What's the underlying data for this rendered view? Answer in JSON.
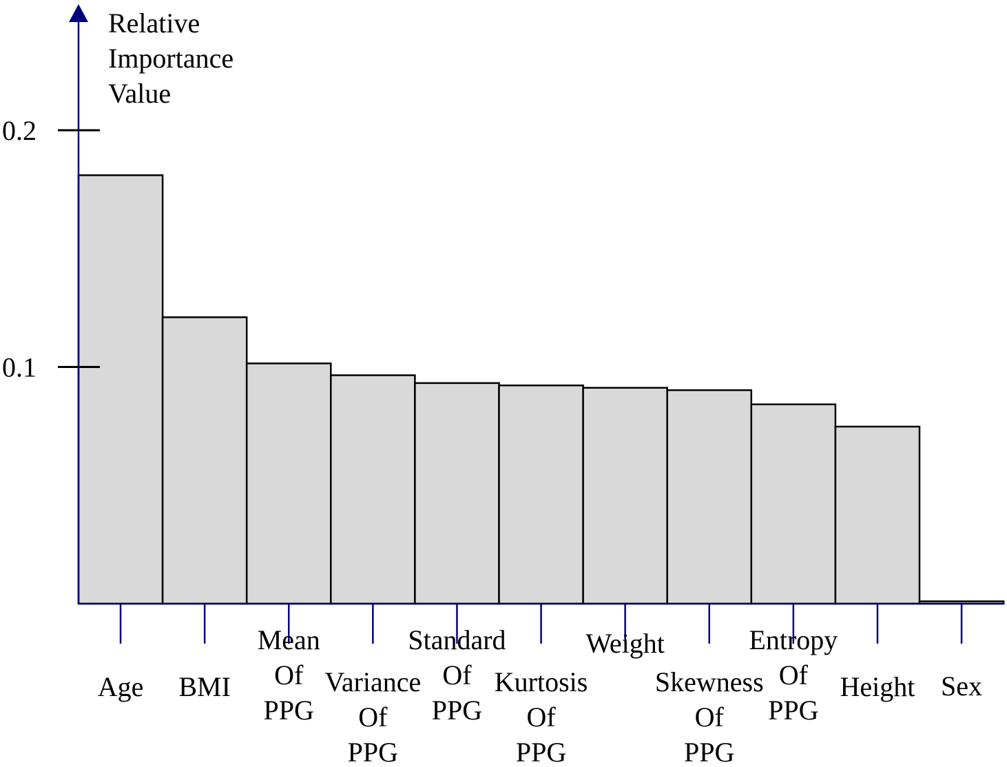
{
  "chart_data": {
    "type": "bar",
    "ylabel_lines": [
      "Relative",
      "Importance",
      "Value"
    ],
    "xlabel": "",
    "ylim": [
      0,
      0.2
    ],
    "yticks": [
      0.1,
      0.2
    ],
    "ytick_labels": [
      "0.1",
      "0.2"
    ],
    "grid": false,
    "legend": "none",
    "categories": [
      "Age",
      "BMI",
      "Mean Of PPG",
      "Variance Of PPG",
      "Standard Of PPG",
      "Kurtosis Of PPG",
      "Weight",
      "Skewness Of PPG",
      "Entropy Of PPG",
      "Height",
      "Sex"
    ],
    "category_label_lines": [
      [
        "Age"
      ],
      [
        "BMI"
      ],
      [
        "Mean",
        "Of",
        "PPG"
      ],
      [
        "Variance",
        "Of",
        "PPG"
      ],
      [
        "Standard",
        "Of",
        "PPG"
      ],
      [
        "Kurtosis",
        "Of",
        "PPG"
      ],
      [
        "Weight"
      ],
      [
        "Skewness",
        "Of",
        "PPG"
      ],
      [
        "Entropy",
        "Of",
        "PPG"
      ],
      [
        "Height"
      ],
      [
        "Sex"
      ]
    ],
    "values": [
      0.181,
      0.121,
      0.1015,
      0.0965,
      0.0932,
      0.0922,
      0.0912,
      0.0902,
      0.0842,
      0.0748,
      0.001
    ],
    "colors": {
      "bar_fill": "#d9d9d9",
      "bar_stroke": "#000000",
      "axis": "#000080",
      "tick": "#000000"
    }
  }
}
